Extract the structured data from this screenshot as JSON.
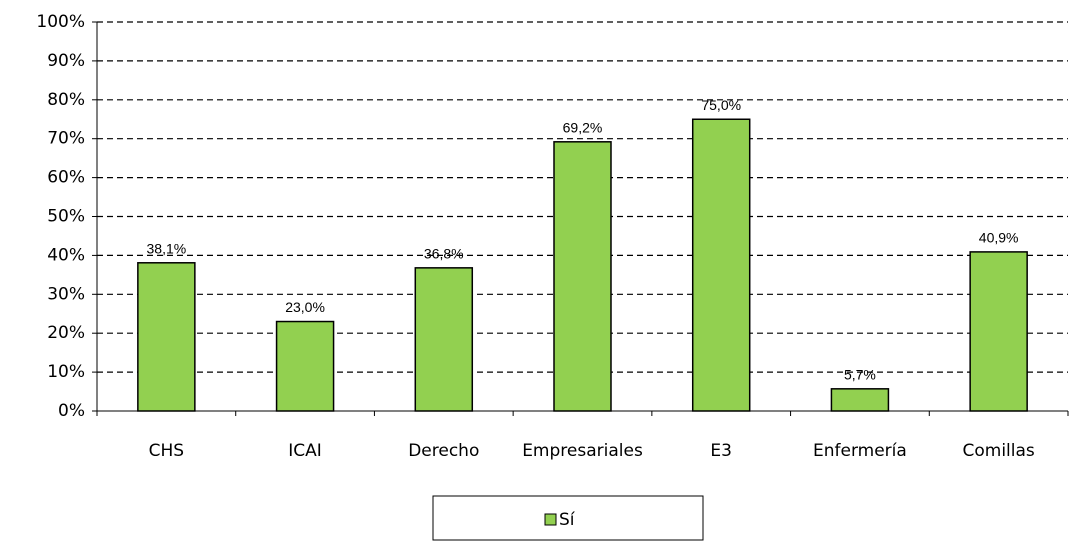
{
  "chart_data": {
    "type": "bar",
    "categories": [
      "CHS",
      "ICAI",
      "Derecho",
      "Empresariales",
      "E3",
      "Enfermería",
      "Comillas"
    ],
    "series": [
      {
        "name": "Sí",
        "color": "#92d050",
        "values": [
          38.1,
          23.0,
          36.8,
          69.2,
          75.0,
          5.7,
          40.9
        ],
        "value_labels": [
          "38,1%",
          "23,0%",
          "36,8%",
          "69,2%",
          "75,0%",
          "5,7%",
          "40,9%"
        ]
      }
    ],
    "ylim": [
      0,
      100
    ],
    "yticks": [
      {
        "value": 0,
        "label": "0%"
      },
      {
        "value": 10,
        "label": "10%"
      },
      {
        "value": 20,
        "label": "20%"
      },
      {
        "value": 30,
        "label": "30%"
      },
      {
        "value": 40,
        "label": "40%"
      },
      {
        "value": 50,
        "label": "50%"
      },
      {
        "value": 60,
        "label": "60%"
      },
      {
        "value": 70,
        "label": "70%"
      },
      {
        "value": 80,
        "label": "80%"
      },
      {
        "value": 90,
        "label": "90%"
      },
      {
        "value": 100,
        "label": "100%"
      }
    ],
    "grid": true,
    "legend": "bottom"
  }
}
